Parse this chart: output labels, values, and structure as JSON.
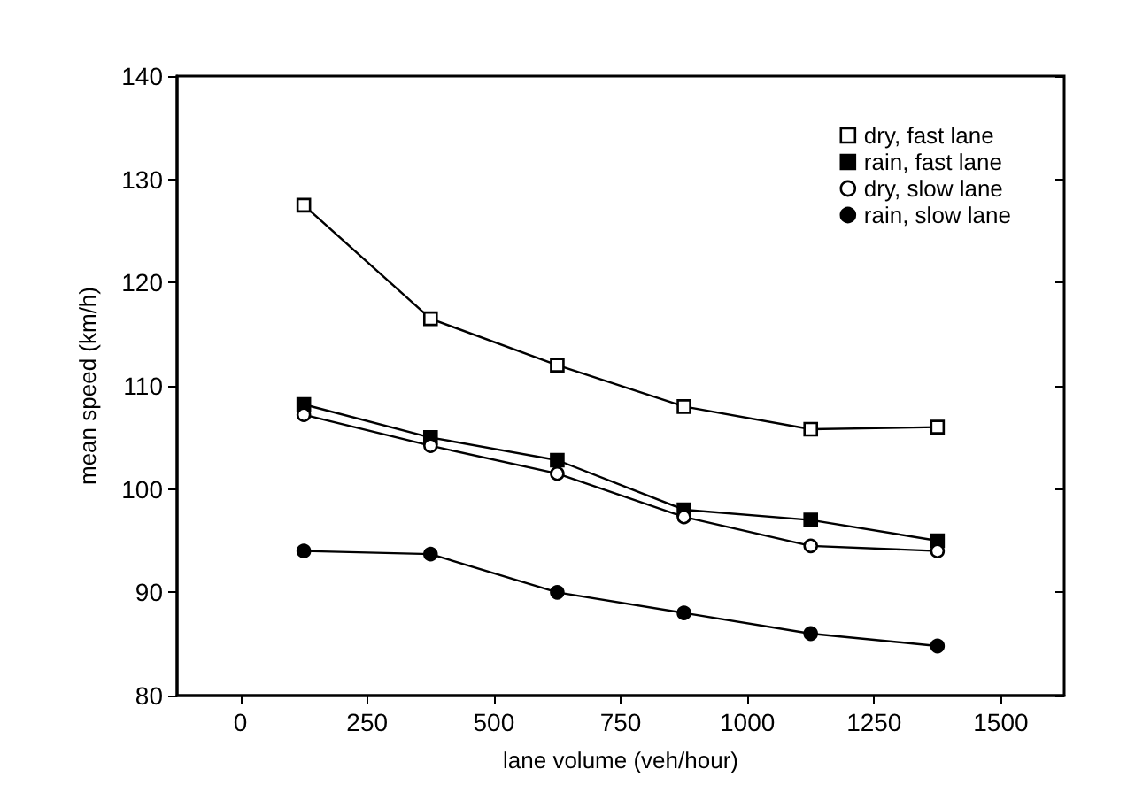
{
  "chart_data": {
    "type": "line",
    "xlabel": "lane volume (veh/hour)",
    "ylabel": "mean speed (km/h)",
    "x": [
      125,
      375,
      625,
      875,
      1125,
      1375
    ],
    "xlim": [
      -125,
      1625
    ],
    "xticks": [
      0,
      250,
      500,
      750,
      1000,
      1250,
      1500
    ],
    "ylim": [
      80,
      140
    ],
    "yticks": [
      80,
      90,
      100,
      110,
      120,
      130,
      140
    ],
    "grid": false,
    "legend": "top right",
    "line_style": "solid",
    "series": [
      {
        "name": "dry, fast lane",
        "color": "#000000",
        "marker": "square",
        "colors": [
          "#ffffff",
          "#ffffff",
          "#ffffff",
          "#ffffff",
          "#ffffff",
          "#ffffff"
        ],
        "values": [
          127.5,
          116.5,
          112,
          108,
          105.8,
          106
        ]
      },
      {
        "name": "rain, fast lane",
        "color": "#000000",
        "marker": "square",
        "values": [
          108.2,
          105,
          102.8,
          98,
          97,
          95
        ]
      },
      {
        "name": "dry, slow lane",
        "color": "#000000",
        "marker": "circle",
        "colors": [
          "#ffffff",
          "#ffffff",
          "#ffffff",
          "#ffffff",
          "#ffffff",
          "#ffffff"
        ],
        "values": [
          107.2,
          104.2,
          101.5,
          97.3,
          94.5,
          94
        ]
      },
      {
        "name": "rain, slow lane",
        "color": "#000000",
        "marker": "circle",
        "values": [
          94,
          93.7,
          90,
          88,
          86,
          84.8
        ]
      }
    ]
  }
}
